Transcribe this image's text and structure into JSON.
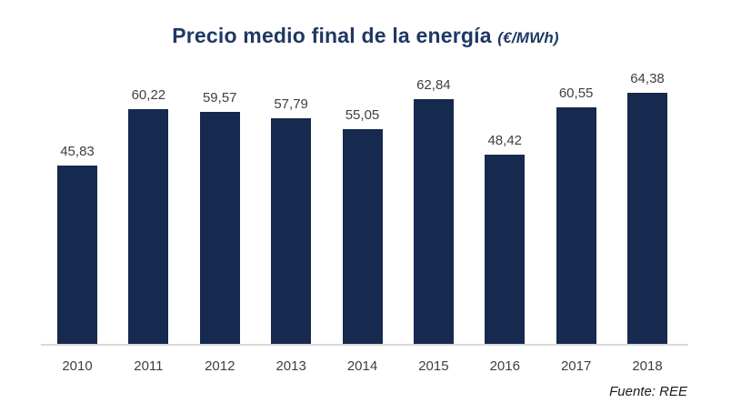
{
  "title": {
    "main": "Precio medio final de la energía ",
    "unit": "(€/MWh)"
  },
  "source": "Fuente: REE",
  "colors": {
    "bar": "#16294e",
    "title": "#1f3864",
    "value_label": "#404040",
    "baseline": "#d9d9d9"
  },
  "chart_data": {
    "type": "bar",
    "title": "Precio medio final de la energía (€/MWh)",
    "categories": [
      "2010",
      "2011",
      "2012",
      "2013",
      "2014",
      "2015",
      "2016",
      "2017",
      "2018"
    ],
    "values": [
      45.83,
      60.22,
      59.57,
      57.79,
      55.05,
      62.84,
      48.42,
      60.55,
      64.38
    ],
    "value_labels": [
      "45,83",
      "60,22",
      "59,57",
      "57,79",
      "55,05",
      "62,84",
      "48,42",
      "60,55",
      "64,38"
    ],
    "xlabel": "",
    "ylabel": "",
    "ylim": [
      0,
      70
    ],
    "grid": false,
    "legend": false,
    "annotations": [
      "Fuente: REE"
    ]
  }
}
